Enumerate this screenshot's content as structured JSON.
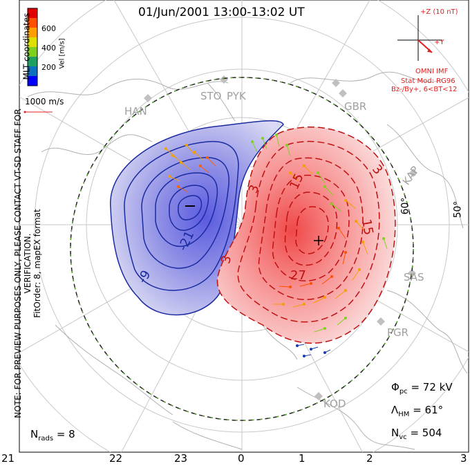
{
  "header": {
    "title": "01/Jun/2001 13:00-13:02 UT",
    "coords_label": "MLT coordinates",
    "verification_note": "NOTE: FOR PREVIEW PURPOSES ONLY, PLEASE CONTACT VT-SD STAFF FOR VERIFICATION.",
    "fit_note": "FitOrder: 8, mapEX format"
  },
  "colorbar": {
    "label": "Vel [m/s]",
    "ticks": [
      "600",
      "400",
      "200"
    ],
    "colors": [
      "#0000ff",
      "#1070c0",
      "#20a060",
      "#80d020",
      "#e0e000",
      "#ffa000",
      "#ff5000",
      "#e00000"
    ]
  },
  "reference_vector": {
    "label": "1000 m/s",
    "color": "#e02020"
  },
  "imf": {
    "z_label": "+Z (10 nT)",
    "y_label": "+Y",
    "source": "OMNI IMF",
    "stat_mod": "Stat Mod: RG96",
    "condition": "Bz-/By+, 6<BT<12",
    "color": "#e02020"
  },
  "stations": [
    "HAN",
    "STO",
    "PYK",
    "GBR",
    "KAP",
    "SAS",
    "PGR",
    "KOD"
  ],
  "latitude_labels": [
    "60°",
    "50°"
  ],
  "contour_labels": {
    "negative": [
      "-9",
      "-21"
    ],
    "positive": [
      "3",
      "3",
      "15",
      "15",
      "27",
      "3"
    ]
  },
  "stats": {
    "n_rads_label": "N",
    "n_rads_sub": "rads",
    "n_rads_value": "= 8",
    "phi_label": "Φ",
    "phi_sub": "pc",
    "phi_value": "= 72 kV",
    "lambda_label": "Λ",
    "lambda_sub": "HM",
    "lambda_value": "= 61°",
    "nvc_label": "N",
    "nvc_sub": "vc",
    "nvc_value": "= 504"
  },
  "mlt_axis": [
    "21",
    "22",
    "23",
    "0",
    "1",
    "2",
    "3"
  ]
}
